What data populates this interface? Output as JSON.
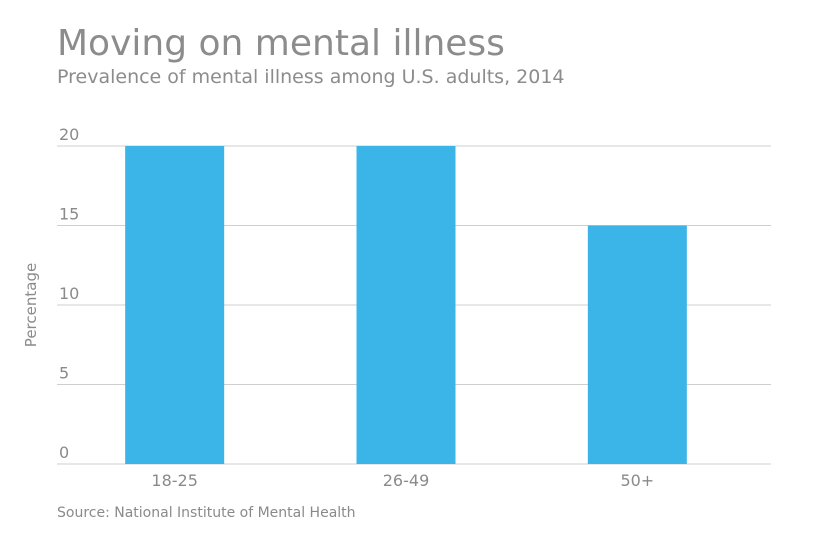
{
  "title": "Moving on mental illness",
  "subtitle": "Prevalence of mental illness among U.S. adults, 2014",
  "source": "Source: National Institute of Mental Health",
  "colors": {
    "bar": "#3bb4e8",
    "grid": "#cfcfcf",
    "axis_text": "#8a8a8a"
  },
  "chart_data": {
    "type": "bar",
    "categories": [
      "18-25",
      "26-49",
      "50+"
    ],
    "values": [
      20,
      20,
      15
    ],
    "title": "Moving on mental illness",
    "subtitle": "Prevalence of mental illness among U.S. adults, 2014",
    "xlabel": "",
    "ylabel": "Percentage",
    "ylim": [
      0,
      20
    ],
    "yticks": [
      0,
      5,
      10,
      15,
      20
    ],
    "grid": true,
    "legend": "none"
  }
}
